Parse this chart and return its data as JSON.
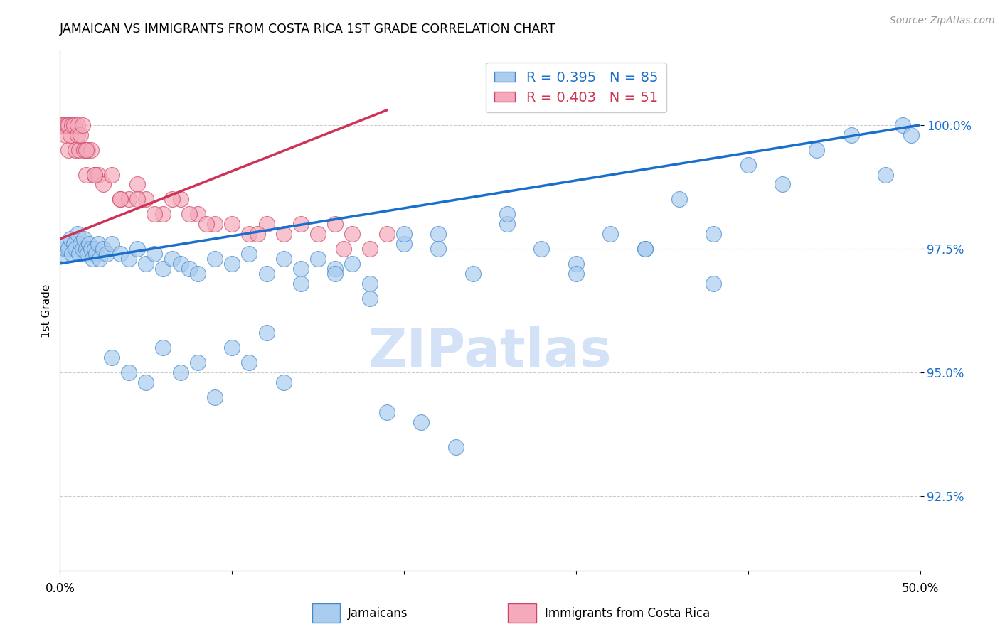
{
  "title": "JAMAICAN VS IMMIGRANTS FROM COSTA RICA 1ST GRADE CORRELATION CHART",
  "source": "Source: ZipAtlas.com",
  "ylabel": "1st Grade",
  "y_ticks": [
    92.5,
    95.0,
    97.5,
    100.0
  ],
  "x_range": [
    0.0,
    50.0
  ],
  "y_range": [
    91.0,
    101.5
  ],
  "blue_color": "#aaccee",
  "pink_color": "#f5aabb",
  "blue_edge_color": "#4488cc",
  "pink_edge_color": "#cc4466",
  "blue_line_color": "#1a6fcc",
  "pink_line_color": "#cc3355",
  "legend_blue_R": "0.395",
  "legend_blue_N": "85",
  "legend_pink_R": "0.403",
  "legend_pink_N": "51",
  "legend_label_blue": "Jamaicans",
  "legend_label_pink": "Immigrants from Costa Rica",
  "watermark_color": "#ccddf5",
  "blue_scatter_x": [
    0.2,
    0.3,
    0.4,
    0.5,
    0.6,
    0.7,
    0.8,
    0.9,
    1.0,
    1.1,
    1.2,
    1.3,
    1.4,
    1.5,
    1.6,
    1.7,
    1.8,
    1.9,
    2.0,
    2.1,
    2.2,
    2.3,
    2.5,
    2.7,
    3.0,
    3.5,
    4.0,
    4.5,
    5.0,
    5.5,
    6.0,
    6.5,
    7.0,
    7.5,
    8.0,
    9.0,
    10.0,
    11.0,
    12.0,
    13.0,
    14.0,
    15.0,
    16.0,
    17.0,
    18.0,
    20.0,
    22.0,
    24.0,
    26.0,
    28.0,
    30.0,
    32.0,
    34.0,
    36.0,
    38.0,
    40.0,
    42.0,
    44.0,
    46.0,
    48.0,
    49.0,
    49.5,
    14.0,
    16.0,
    18.0,
    20.0,
    22.0,
    26.0,
    30.0,
    34.0,
    38.0,
    10.0,
    12.0,
    8.0,
    6.0,
    4.0,
    3.0,
    5.0,
    7.0,
    9.0,
    11.0,
    13.0,
    19.0,
    21.0,
    23.0
  ],
  "blue_scatter_y": [
    97.4,
    97.5,
    97.6,
    97.5,
    97.7,
    97.4,
    97.6,
    97.5,
    97.8,
    97.4,
    97.6,
    97.5,
    97.7,
    97.5,
    97.4,
    97.6,
    97.5,
    97.3,
    97.5,
    97.4,
    97.6,
    97.3,
    97.5,
    97.4,
    97.6,
    97.4,
    97.3,
    97.5,
    97.2,
    97.4,
    97.1,
    97.3,
    97.2,
    97.1,
    97.0,
    97.3,
    97.2,
    97.4,
    97.0,
    97.3,
    97.1,
    97.3,
    97.1,
    97.2,
    96.8,
    97.6,
    97.8,
    97.0,
    98.0,
    97.5,
    97.2,
    97.8,
    97.5,
    98.5,
    97.8,
    99.2,
    98.8,
    99.5,
    99.8,
    99.0,
    100.0,
    99.8,
    96.8,
    97.0,
    96.5,
    97.8,
    97.5,
    98.2,
    97.0,
    97.5,
    96.8,
    95.5,
    95.8,
    95.2,
    95.5,
    95.0,
    95.3,
    94.8,
    95.0,
    94.5,
    95.2,
    94.8,
    94.2,
    94.0,
    93.5
  ],
  "pink_scatter_x": [
    0.1,
    0.2,
    0.3,
    0.4,
    0.5,
    0.5,
    0.6,
    0.7,
    0.8,
    0.9,
    1.0,
    1.0,
    1.1,
    1.2,
    1.3,
    1.4,
    1.5,
    1.6,
    1.8,
    2.0,
    2.2,
    2.5,
    3.0,
    3.5,
    4.0,
    4.5,
    5.0,
    6.0,
    7.0,
    8.0,
    9.0,
    10.0,
    11.0,
    12.0,
    13.0,
    14.0,
    15.0,
    16.0,
    17.0,
    18.0,
    19.0,
    3.5,
    4.5,
    5.5,
    6.5,
    7.5,
    8.5,
    11.5,
    16.5,
    2.0,
    1.5
  ],
  "pink_scatter_y": [
    100.0,
    100.0,
    99.8,
    100.0,
    100.0,
    99.5,
    99.8,
    100.0,
    100.0,
    99.5,
    99.8,
    100.0,
    99.5,
    99.8,
    100.0,
    99.5,
    99.0,
    99.5,
    99.5,
    99.0,
    99.0,
    98.8,
    99.0,
    98.5,
    98.5,
    98.8,
    98.5,
    98.2,
    98.5,
    98.2,
    98.0,
    98.0,
    97.8,
    98.0,
    97.8,
    98.0,
    97.8,
    98.0,
    97.8,
    97.5,
    97.8,
    98.5,
    98.5,
    98.2,
    98.5,
    98.2,
    98.0,
    97.8,
    97.5,
    99.0,
    99.5
  ]
}
